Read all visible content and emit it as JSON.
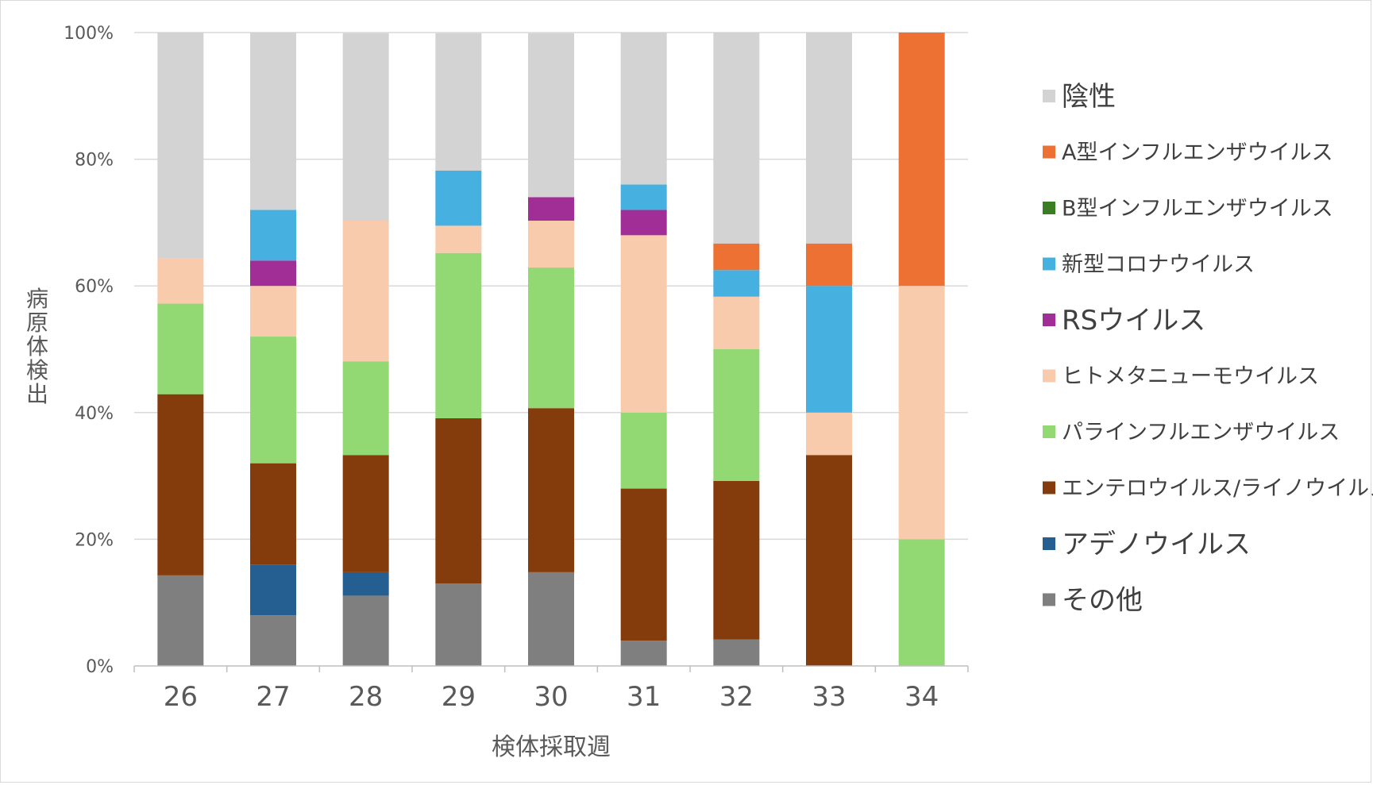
{
  "chart_data": {
    "type": "bar",
    "stacked": true,
    "percent": true,
    "title": "",
    "xlabel": "検体採取週",
    "ylabel": "病原体検出",
    "ylim": [
      0,
      100
    ],
    "yticks": [
      "0%",
      "20%",
      "40%",
      "60%",
      "80%",
      "100%"
    ],
    "categories": [
      "26",
      "27",
      "28",
      "29",
      "30",
      "31",
      "32",
      "33",
      "34"
    ],
    "grid": true,
    "legend_position": "right",
    "series": [
      {
        "name": "その他",
        "color": "#7f7f7f",
        "values": [
          14.3,
          8,
          11.1,
          13,
          14.8,
          4,
          4.2,
          0,
          0
        ]
      },
      {
        "name": "アデノウイルス",
        "color": "#255e91",
        "values": [
          0,
          8,
          3.7,
          0,
          0,
          0,
          0,
          0,
          0
        ]
      },
      {
        "name": "エンテロウイルス/ライノウイルス",
        "color": "#843c0c",
        "values": [
          28.6,
          16,
          18.5,
          26.1,
          25.9,
          24,
          25,
          33.3,
          0
        ]
      },
      {
        "name": "パラインフルエンザウイルス",
        "color": "#92d973",
        "values": [
          14.3,
          20,
          14.8,
          26.1,
          22.2,
          12,
          20.8,
          0,
          20
        ]
      },
      {
        "name": "ヒトメタニューモウイルス",
        "color": "#f8cbad",
        "values": [
          7.1,
          8,
          22.2,
          4.3,
          7.4,
          28,
          8.3,
          6.7,
          40
        ]
      },
      {
        "name": "RSウイルス",
        "color": "#a12d97",
        "values": [
          0,
          4,
          0,
          0,
          3.7,
          4,
          0,
          0,
          0
        ]
      },
      {
        "name": "新型コロナウイルス",
        "color": "#46b1e1",
        "values": [
          0,
          8,
          0,
          8.7,
          0,
          4,
          4.2,
          20,
          0
        ]
      },
      {
        "name": "B型インフルエンザウイルス",
        "color": "#3a7d22",
        "values": [
          0,
          0,
          0,
          0,
          0,
          0,
          0,
          0,
          0
        ]
      },
      {
        "name": "A型インフルエンザウイルス",
        "color": "#ed7133",
        "values": [
          0,
          0,
          0,
          0,
          0,
          0,
          4.2,
          6.7,
          40
        ]
      },
      {
        "name": "陰性",
        "color": "#d3d3d3",
        "values": [
          35.7,
          28,
          29.6,
          21.7,
          25.9,
          24,
          33.3,
          33.3,
          0
        ]
      }
    ],
    "legend_order": [
      "陰性",
      "A型インフルエンザウイルス",
      "B型インフルエンザウイルス",
      "新型コロナウイルス",
      "RSウイルス",
      "ヒトメタニューモウイルス",
      "パラインフルエンザウイルス",
      "エンテロウイルス/ライノウイルス",
      "アデノウイルス",
      "その他"
    ]
  }
}
